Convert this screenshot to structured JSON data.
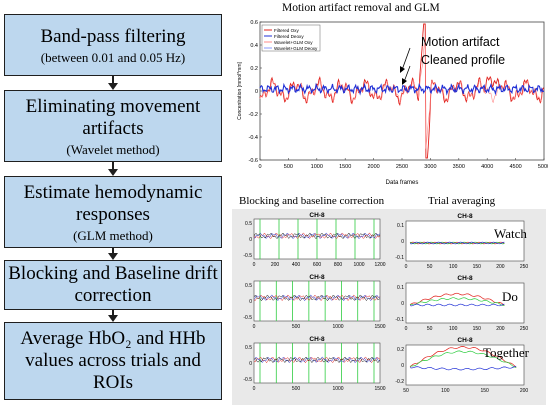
{
  "pipeline": [
    {
      "main": "Band-pass filtering",
      "sub": "(between 0.01 and 0.05 Hz)"
    },
    {
      "main": "Eliminating movement artifacts",
      "sub": "(Wavelet method)"
    },
    {
      "main": "Estimate hemodynamic responses",
      "sub": "(GLM method)"
    },
    {
      "main": "Blocking and Baseline drift correction",
      "sub": ""
    },
    {
      "main": "Average HbO₂ and HHb values across trials and ROIs",
      "sub": ""
    }
  ],
  "top_panel": {
    "title": "Motion artifact removal and GLM",
    "annotation_1": "Motion artifact",
    "annotation_2": "Cleaned profile",
    "ylabel": "Concentration [mmol*mm]",
    "xlabel": "Data frames",
    "legend": [
      "Filtered Oxy",
      "Filtered Deoxy",
      "Wavelet+GLM Oxy",
      "Wavelet+GLM Deoxy"
    ],
    "yticks": [
      "0.6",
      "0.4",
      "0.2",
      "0",
      "-0.2",
      "-0.4",
      "-0.6"
    ],
    "xticks": [
      "0",
      "500",
      "1000",
      "1500",
      "2000",
      "2500",
      "3000",
      "3500",
      "4000",
      "4500",
      "5000"
    ],
    "colors": {
      "oxy": "#e0201b",
      "deoxy": "#1f2fd6",
      "bg": "#ffffff"
    }
  },
  "bottom_left": {
    "title": "Blocking and baseline correction",
    "plots": [
      {
        "title": "CH-8",
        "xticks": [
          "0",
          "200",
          "400",
          "600",
          "800",
          "1000",
          "1200"
        ],
        "yticks": [
          "0.5",
          "0",
          "-0.5"
        ]
      },
      {
        "title": "CH-8",
        "xticks": [
          "0",
          "500",
          "1000",
          "1500"
        ],
        "yticks": [
          "0.5",
          "0",
          "-0.5"
        ]
      },
      {
        "title": "CH-8",
        "xticks": [
          "0",
          "500",
          "1000",
          "1500"
        ],
        "yticks": [
          "0.5",
          "0",
          "-0.5"
        ]
      }
    ]
  },
  "bottom_right": {
    "title": "Trial averaging",
    "plots": [
      {
        "title": "CH-8",
        "label": "Watch",
        "xticks": [
          "0",
          "50",
          "100",
          "150",
          "200",
          "250"
        ],
        "yticks": [
          "0.1",
          "0",
          "-0.1"
        ]
      },
      {
        "title": "CH-8",
        "label": "Do",
        "xticks": [
          "0",
          "50",
          "100",
          "150",
          "200",
          "250"
        ],
        "yticks": [
          "0.1",
          "0",
          "-0.1"
        ]
      },
      {
        "title": "CH-8",
        "label": "Together",
        "xticks": [
          "50",
          "100",
          "150",
          "200"
        ],
        "yticks": [
          "0.2",
          "0",
          "-0.2"
        ]
      }
    ]
  }
}
